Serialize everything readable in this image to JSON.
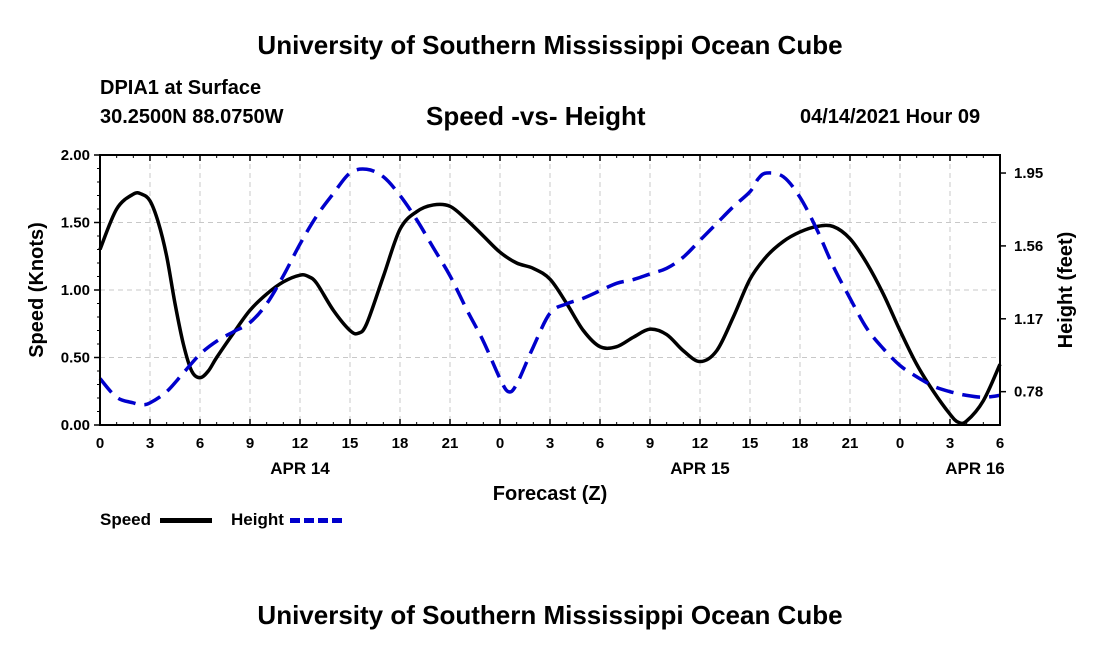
{
  "header": {
    "title_top": "University of Southern Mississippi Ocean Cube",
    "station": "DPIA1 at Surface",
    "coords": "30.2500N  88.0750W",
    "chart_title": "Speed -vs- Height",
    "datetime": "04/14/2021 Hour 09",
    "title_bottom": "University of Southern Mississippi Ocean Cube"
  },
  "legend": {
    "speed_label": "Speed",
    "height_label": "Height"
  },
  "colors": {
    "speed": "#000000",
    "height": "#0000cc",
    "grid": "#c8c8c8"
  },
  "chart_data": {
    "type": "line",
    "title": "Speed -vs- Height",
    "xlabel": "Forecast (Z)",
    "ylabel": "Speed (Knots)",
    "y2label": "Height (feet)",
    "x_range": [
      0,
      54
    ],
    "ylim": [
      0,
      2.0
    ],
    "y2lim": [
      0.6016,
      2.0465
    ],
    "x_ticks": [
      0,
      3,
      6,
      9,
      12,
      15,
      18,
      21,
      24,
      27,
      30,
      33,
      36,
      39,
      42,
      45,
      48,
      51,
      54
    ],
    "x_tick_labels": [
      "0",
      "3",
      "6",
      "9",
      "12",
      "15",
      "18",
      "21",
      "0",
      "3",
      "6",
      "9",
      "12",
      "15",
      "18",
      "21",
      "0",
      "3",
      "6"
    ],
    "y_ticks": [
      0,
      0.5,
      1.0,
      1.5,
      2.0
    ],
    "y_tick_labels": [
      "0.00",
      "0.50",
      "1.00",
      "1.50",
      "2.00"
    ],
    "y2_ticks": [
      0.78,
      1.17,
      1.56,
      1.95
    ],
    "y2_tick_labels": [
      "0.78",
      "1.17",
      "1.56",
      "1.95"
    ],
    "date_labels": [
      {
        "x": 12,
        "label": "APR 14"
      },
      {
        "x": 36,
        "label": "APR 15"
      },
      {
        "x": 52.5,
        "label": "APR 16"
      }
    ],
    "grid": true,
    "series": [
      {
        "name": "Speed",
        "axis": "left",
        "style": "solid",
        "x": [
          0,
          1,
          2,
          2.5,
          3,
          3.5,
          4,
          4.5,
          5,
          5.5,
          6,
          6.5,
          7,
          8,
          9,
          10,
          11,
          12,
          12.5,
          13,
          14,
          15,
          15.5,
          16,
          17,
          18,
          19,
          20,
          21,
          22,
          23,
          24,
          25,
          26,
          27,
          28,
          29,
          30,
          31,
          32,
          33,
          34,
          35,
          36,
          37,
          38,
          39,
          40,
          41,
          42,
          43,
          44,
          45,
          46,
          47,
          48,
          49,
          50,
          51,
          51.5,
          52,
          53,
          54
        ],
        "values": [
          1.3,
          1.6,
          1.71,
          1.71,
          1.66,
          1.5,
          1.25,
          0.9,
          0.6,
          0.4,
          0.35,
          0.4,
          0.5,
          0.68,
          0.85,
          0.97,
          1.06,
          1.11,
          1.1,
          1.05,
          0.85,
          0.7,
          0.68,
          0.75,
          1.1,
          1.45,
          1.58,
          1.63,
          1.62,
          1.52,
          1.4,
          1.28,
          1.2,
          1.16,
          1.08,
          0.9,
          0.7,
          0.58,
          0.58,
          0.65,
          0.71,
          0.67,
          0.55,
          0.47,
          0.55,
          0.8,
          1.08,
          1.25,
          1.36,
          1.43,
          1.47,
          1.47,
          1.38,
          1.2,
          0.97,
          0.7,
          0.45,
          0.25,
          0.08,
          0.02,
          0.03,
          0.18,
          0.45
        ]
      },
      {
        "name": "Height",
        "axis": "right",
        "style": "dashed",
        "x": [
          0,
          1,
          2,
          2.5,
          3,
          4,
          5,
          6,
          7,
          8,
          9,
          10,
          11,
          12,
          13,
          14,
          15,
          16,
          17,
          18,
          19,
          20,
          21,
          22,
          23,
          24,
          24.5,
          25,
          26,
          27,
          28,
          29,
          30,
          31,
          32,
          33,
          34,
          35,
          36,
          37,
          38,
          39,
          39.5,
          40,
          41,
          42,
          43,
          44,
          45,
          46,
          47,
          48,
          49,
          50,
          51,
          52,
          53,
          54
        ],
        "values": [
          0.85,
          0.75,
          0.72,
          0.71,
          0.72,
          0.78,
          0.88,
          0.98,
          1.05,
          1.1,
          1.15,
          1.25,
          1.4,
          1.57,
          1.72,
          1.84,
          1.95,
          1.97,
          1.93,
          1.83,
          1.7,
          1.55,
          1.4,
          1.22,
          1.05,
          0.85,
          0.78,
          0.82,
          1.02,
          1.2,
          1.25,
          1.28,
          1.32,
          1.36,
          1.38,
          1.41,
          1.44,
          1.5,
          1.59,
          1.68,
          1.77,
          1.85,
          1.92,
          1.95,
          1.93,
          1.82,
          1.65,
          1.45,
          1.28,
          1.12,
          1.01,
          0.92,
          0.86,
          0.81,
          0.78,
          0.76,
          0.75,
          0.76
        ]
      }
    ]
  }
}
